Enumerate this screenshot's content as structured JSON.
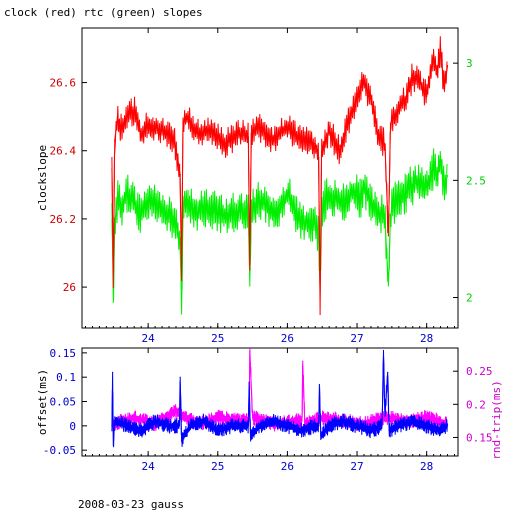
{
  "figure": {
    "title": "clock (red) rtc (green) slopes",
    "footer": "2008-03-23 gauss"
  },
  "colors": {
    "clock": "#ff0000",
    "rtc": "#00ee00",
    "offset": "#0000ff",
    "rtt": "#ff00ff",
    "left_axis_top": "#cc0000",
    "right_axis_top": "#00cc00",
    "left_axis_bottom": "#0000cc",
    "right_axis_bottom": "#cc00cc",
    "frame": "#000000",
    "background": "#ffffff"
  },
  "chart_data": [
    {
      "type": "line",
      "xlim": [
        23.05,
        28.45
      ],
      "x_ticks": [
        24,
        25,
        26,
        27,
        28
      ],
      "x_tick_labels": [
        "24",
        "25",
        "26",
        "27",
        "28"
      ],
      "ylabel": "clockslope",
      "ylim_left": [
        25.88,
        26.76
      ],
      "y_ticks_left": [
        26,
        26.2,
        26.4,
        26.6
      ],
      "y_tick_labels_left": [
        "26",
        "26.2",
        "26.4",
        "26.6"
      ],
      "ylim_right": [
        1.87,
        3.15
      ],
      "y_ticks_right": [
        2,
        2.5,
        3
      ],
      "y_tick_labels_right": [
        "2",
        "2.5",
        "3"
      ],
      "series": [
        {
          "axis": "left",
          "x": [
            23.48,
            23.5,
            23.52,
            23.56,
            23.6,
            23.7,
            23.8,
            23.9,
            24.0,
            24.2,
            24.38,
            24.46,
            24.48,
            24.5,
            24.56,
            24.7,
            24.9,
            25.1,
            25.3,
            25.44,
            25.46,
            25.48,
            25.6,
            25.8,
            26.0,
            26.2,
            26.4,
            26.45,
            26.47,
            26.49,
            26.6,
            26.75,
            26.85,
            26.95,
            27.05,
            27.1,
            27.2,
            27.3,
            27.4,
            27.45,
            27.48,
            27.52,
            27.6,
            27.7,
            27.8,
            27.9,
            28.0,
            28.05,
            28.1,
            28.15,
            28.2,
            28.25,
            28.3
          ],
          "values": [
            26.38,
            26.0,
            26.43,
            26.5,
            26.46,
            26.5,
            26.52,
            26.44,
            26.48,
            26.46,
            26.43,
            26.33,
            26.02,
            26.48,
            26.5,
            26.45,
            26.46,
            26.42,
            26.45,
            26.44,
            26.05,
            26.45,
            26.47,
            26.43,
            26.47,
            26.43,
            26.42,
            26.38,
            25.92,
            26.4,
            26.46,
            26.4,
            26.47,
            26.52,
            26.58,
            26.6,
            26.55,
            26.45,
            26.42,
            26.15,
            26.48,
            26.5,
            26.52,
            26.55,
            26.62,
            26.6,
            26.56,
            26.62,
            26.68,
            26.62,
            26.7,
            26.58,
            26.65
          ]
        },
        {
          "axis": "right",
          "x": [
            23.48,
            23.5,
            23.52,
            23.56,
            23.6,
            23.7,
            23.8,
            23.9,
            24.0,
            24.2,
            24.38,
            24.46,
            24.48,
            24.5,
            24.56,
            24.7,
            24.9,
            25.1,
            25.3,
            25.44,
            25.46,
            25.48,
            25.6,
            25.8,
            26.0,
            26.2,
            26.4,
            26.45,
            26.47,
            26.49,
            26.6,
            26.75,
            26.85,
            26.95,
            27.05,
            27.1,
            27.2,
            27.3,
            27.4,
            27.45,
            27.48,
            27.52,
            27.6,
            27.7,
            27.8,
            27.9,
            28.0,
            28.05,
            28.1,
            28.15,
            28.2,
            28.25,
            28.3
          ],
          "values": [
            2.4,
            1.98,
            2.32,
            2.42,
            2.38,
            2.45,
            2.4,
            2.35,
            2.42,
            2.38,
            2.33,
            2.25,
            1.93,
            2.38,
            2.42,
            2.36,
            2.38,
            2.35,
            2.37,
            2.35,
            2.05,
            2.38,
            2.42,
            2.36,
            2.44,
            2.32,
            2.32,
            2.25,
            2.02,
            2.38,
            2.45,
            2.4,
            2.42,
            2.45,
            2.42,
            2.48,
            2.4,
            2.37,
            2.34,
            2.05,
            2.35,
            2.4,
            2.42,
            2.45,
            2.48,
            2.5,
            2.47,
            2.5,
            2.55,
            2.5,
            2.6,
            2.48,
            2.52
          ]
        }
      ]
    },
    {
      "type": "line",
      "xlim": [
        23.05,
        28.45
      ],
      "x_ticks": [
        24,
        25,
        26,
        27,
        28
      ],
      "x_tick_labels": [
        "24",
        "25",
        "26",
        "27",
        "28"
      ],
      "ylabel_left": "offset(ms)",
      "ylabel_right": "rnd-trip(ms)",
      "ylim_left": [
        -0.062,
        0.16
      ],
      "y_ticks_left": [
        -0.05,
        0,
        0.05,
        0.1,
        0.15
      ],
      "y_tick_labels_left": [
        "-0.05",
        "0",
        "0.05",
        "0.1",
        "0.15"
      ],
      "ylim_right": [
        0.122,
        0.285
      ],
      "y_ticks_right": [
        0.15,
        0.2,
        0.25
      ],
      "y_tick_labels_right": [
        "0.15",
        "0.2",
        "0.25"
      ],
      "series": [
        {
          "axis": "left",
          "x": [
            23.48,
            23.49,
            23.5,
            23.52,
            23.7,
            23.9,
            24.1,
            24.3,
            24.45,
            24.46,
            24.48,
            24.6,
            24.8,
            25.0,
            25.2,
            25.4,
            25.44,
            25.45,
            25.47,
            25.6,
            25.8,
            26.0,
            26.2,
            26.4,
            26.45,
            26.46,
            26.48,
            26.6,
            26.8,
            27.0,
            27.2,
            27.36,
            27.38,
            27.4,
            27.44,
            27.46,
            27.6,
            27.8,
            28.0,
            28.2,
            28.3
          ],
          "values": [
            0.0,
            0.11,
            -0.04,
            0.01,
            0.0,
            -0.01,
            0.01,
            0.0,
            0.0,
            0.1,
            -0.03,
            0.0,
            0.01,
            -0.01,
            0.0,
            0.0,
            0.0,
            0.09,
            -0.02,
            0.0,
            0.01,
            0.0,
            -0.01,
            0.0,
            0.0,
            0.085,
            -0.02,
            0.0,
            0.01,
            0.0,
            -0.01,
            0.0,
            0.155,
            0.02,
            0.11,
            -0.01,
            0.0,
            0.01,
            0.0,
            -0.01,
            0.0
          ]
        },
        {
          "axis": "right",
          "x": [
            23.5,
            23.8,
            24.1,
            24.4,
            24.7,
            25.0,
            25.3,
            25.45,
            25.46,
            25.5,
            25.8,
            26.1,
            26.21,
            26.22,
            26.25,
            26.5,
            26.8,
            27.1,
            27.4,
            27.7,
            28.0,
            28.3
          ],
          "values": [
            0.17,
            0.18,
            0.17,
            0.19,
            0.17,
            0.18,
            0.175,
            0.175,
            0.28,
            0.18,
            0.17,
            0.175,
            0.175,
            0.265,
            0.17,
            0.18,
            0.175,
            0.17,
            0.18,
            0.175,
            0.18,
            0.17
          ]
        }
      ]
    }
  ]
}
